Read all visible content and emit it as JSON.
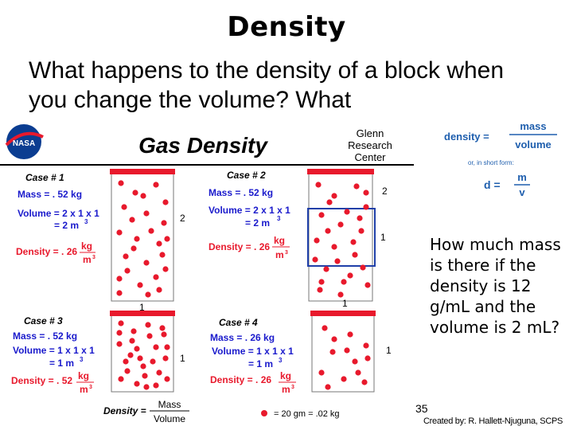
{
  "title": "Density",
  "question": "What happens to the density of a block when you change the volume?  What",
  "diagram": {
    "heading": "Gas  Density",
    "logo": "NASA",
    "center": [
      "Glenn",
      "Research",
      "Center"
    ],
    "cases": [
      {
        "label": "Case  # 1",
        "mass": "Mass =  . 52  kg",
        "volume1": "Volume = 2 x 1 x 1",
        "volume2": "= 2  m",
        "volume_exp": "3",
        "density": "Density = . 26",
        "unit_num": "kg",
        "unit_den": "m",
        "unit_exp": "3",
        "dim_h": "2",
        "dim_w": "1"
      },
      {
        "label": "Case  # 2",
        "mass": "Mass =  . 52  kg",
        "volume1": "Volume = 2 x 1 x 1",
        "volume2": "= 2  m",
        "volume_exp": "3",
        "density": "Density = . 26",
        "unit_num": "kg",
        "unit_den": "m",
        "unit_exp": "3",
        "dim_h": "2",
        "dim_w": "1",
        "dim_inner": "1"
      },
      {
        "label": "Case  # 3",
        "mass": "Mass =  . 52  kg",
        "volume1": "Volume = 1 x 1 x 1",
        "volume2": "= 1  m",
        "volume_exp": "3",
        "density": "Density = . 52",
        "unit_num": "kg",
        "unit_den": "m",
        "unit_exp": "3",
        "dim_h": "1"
      },
      {
        "label": "Case  # 4",
        "mass": "Mass =  . 26  kg",
        "volume1": "Volume = 1 x 1 x 1",
        "volume2": "= 1  m",
        "volume_exp": "3",
        "density": "Density = . 26",
        "unit_num": "kg",
        "unit_den": "m",
        "unit_exp": "3",
        "dim_h": "1"
      }
    ],
    "formula": {
      "lhs": "Density =",
      "num": "Mass",
      "den": "Volume"
    },
    "legend": "=  20 gm  =  .02 kg",
    "colors": {
      "particle": "#e8192c",
      "lid": "#e8192c",
      "highlight": "#1f3fa8",
      "text": "#1a1acc"
    }
  },
  "formula_box": {
    "label": "density =",
    "num": "mass",
    "den": "volume",
    "short": "or, in short form:",
    "d_label": "d =",
    "d_num": "m",
    "d_den": "v"
  },
  "side_text": "How much mass is there if the density is 12 g/mL and the volume is 2 mL?",
  "slide_number": "35",
  "credit": "Created by: R. Hallett-Njuguna, SCPS"
}
